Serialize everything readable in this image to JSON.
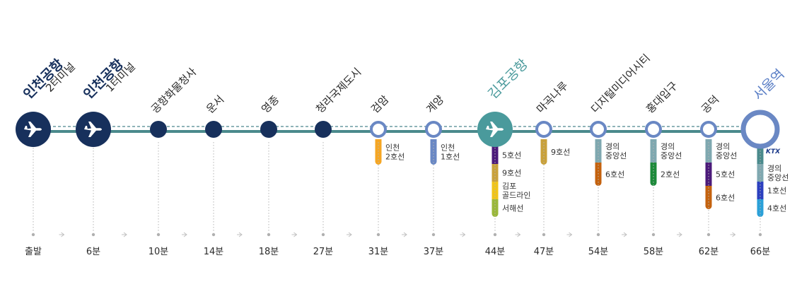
{
  "stations": [
    {
      "id": "t2",
      "name": "인천공항",
      "sub": "2터미널",
      "time": "출발",
      "type": "airport"
    },
    {
      "id": "t1",
      "name": "인천공항",
      "sub": "1터미널",
      "time": "6분",
      "type": "airport"
    },
    {
      "id": "cargo",
      "name": "공항화물청사",
      "time": "10분",
      "type": "stop"
    },
    {
      "id": "unseo",
      "name": "운서",
      "time": "14분",
      "type": "stop"
    },
    {
      "id": "yeongjong",
      "name": "영종",
      "time": "18분",
      "type": "stop"
    },
    {
      "id": "cheongna",
      "name": "청라국제도시",
      "time": "27분",
      "type": "stop"
    },
    {
      "id": "geomam",
      "name": "검암",
      "time": "31분",
      "type": "transfer"
    },
    {
      "id": "gyeyang",
      "name": "계양",
      "time": "37분",
      "type": "transfer"
    },
    {
      "id": "gimpo",
      "name": "김포공항",
      "time": "44분",
      "type": "airport-teal"
    },
    {
      "id": "magoknaru",
      "name": "마곡나루",
      "time": "47분",
      "type": "transfer"
    },
    {
      "id": "dmc",
      "name": "디지털미디어시티",
      "time": "54분",
      "type": "transfer"
    },
    {
      "id": "hongik",
      "name": "홍대입구",
      "time": "58분",
      "type": "transfer"
    },
    {
      "id": "gongdeok",
      "name": "공덕",
      "time": "62분",
      "type": "transfer"
    },
    {
      "id": "seoul",
      "name": "서울역",
      "time": "66분",
      "type": "terminal"
    }
  ],
  "transfers": {
    "geomam": [
      {
        "label": "인천\n2호선",
        "color": "#f5a623"
      }
    ],
    "gyeyang": [
      {
        "label": "인천\n1호선",
        "color": "#6a88c4"
      }
    ],
    "gimpo": [
      {
        "label": "5호선",
        "color": "#4b1a7a"
      },
      {
        "label": "9호선",
        "color": "#c9a13b"
      },
      {
        "label": "김포\n골드라인",
        "color": "#f0c419"
      },
      {
        "label": "서해선",
        "color": "#9ab83a"
      }
    ],
    "magoknaru": [
      {
        "label": "9호선",
        "color": "#c9a13b"
      }
    ],
    "dmc": [
      {
        "label": "경의\n중앙선",
        "color": "#7fa8b0"
      },
      {
        "label": "6호선",
        "color": "#c4620e"
      }
    ],
    "hongik": [
      {
        "label": "경의\n중앙선",
        "color": "#7fa8b0"
      },
      {
        "label": "2호선",
        "color": "#1c8a3a"
      }
    ],
    "gongdeok": [
      {
        "label": "경의\n중앙선",
        "color": "#7fa8b0"
      },
      {
        "label": "5호선",
        "color": "#4b1a7a"
      },
      {
        "label": "6호선",
        "color": "#c4620e"
      }
    ],
    "seoul": [
      {
        "label": "KTX",
        "color": "#4a8a8c",
        "ktx": true
      },
      {
        "label": "경의\n중앙선",
        "color": "#7fa8b0"
      },
      {
        "label": "1호선",
        "color": "#2b3fbf"
      },
      {
        "label": "4호선",
        "color": "#2aa0d8"
      }
    ]
  },
  "colors": {
    "line_main": "#4a8a8c",
    "line_dash": "#6a9aa0",
    "navy": "#17305c",
    "teal": "#4a9a9c",
    "transfer_ring": "#6a88c4",
    "seoul_ring": "#6a88c4"
  }
}
